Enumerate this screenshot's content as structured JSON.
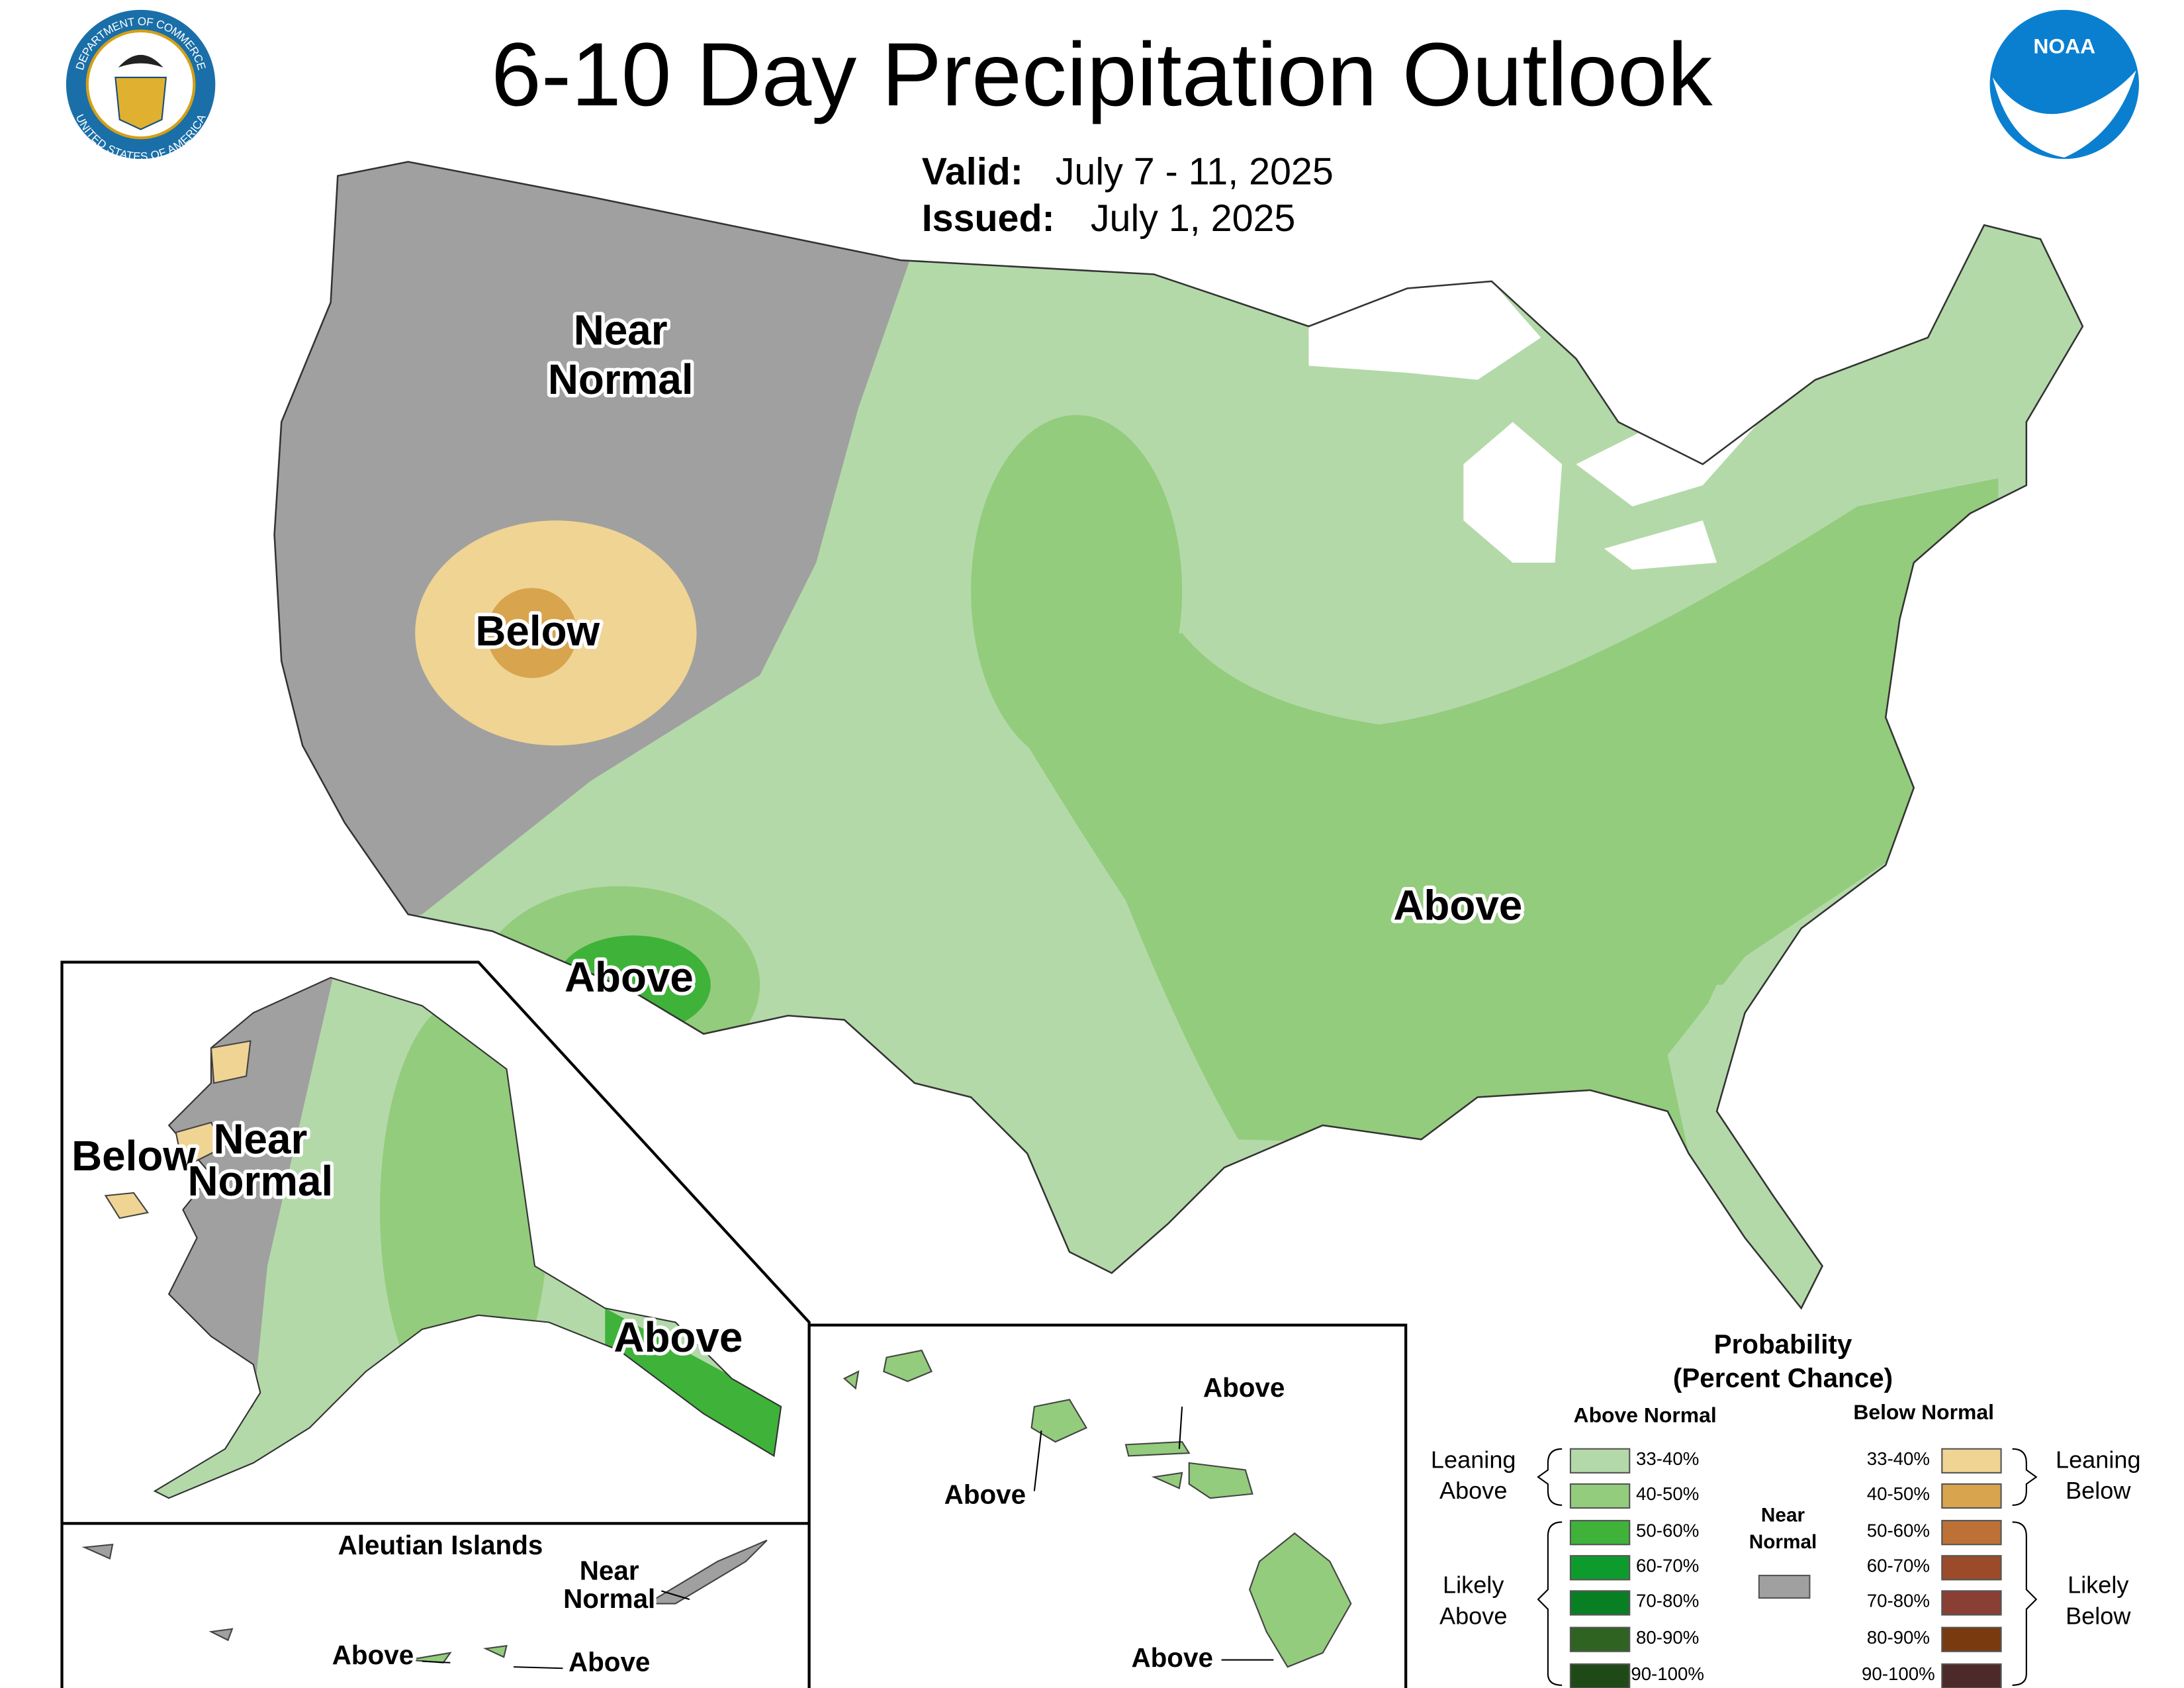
{
  "header": {
    "title": "6-10 Day Precipitation Outlook",
    "valid_label": "Valid:",
    "valid_dates": "July 7 - 11, 2025",
    "issued_label": "Issued:",
    "issued_date": "July 1, 2025"
  },
  "logos": {
    "commerce_top": "DEPARTMENT OF COMMERCE",
    "commerce_bottom": "UNITED STATES OF AMERICA",
    "noaa": "NOAA"
  },
  "conus_labels": [
    {
      "lines": [
        "Near",
        "Normal"
      ]
    },
    {
      "lines": [
        "Below"
      ]
    },
    {
      "lines": [
        "Above"
      ]
    },
    {
      "lines": [
        "Above"
      ]
    }
  ],
  "alaska_labels": [
    {
      "lines": [
        "Below"
      ]
    },
    {
      "lines": [
        "Near",
        "Normal"
      ]
    },
    {
      "lines": [
        "Above"
      ]
    }
  ],
  "aleutian": {
    "title": "Aleutian Islands",
    "labels": [
      {
        "lines": [
          "Near",
          "Normal"
        ]
      },
      {
        "lines": [
          "Above"
        ]
      },
      {
        "lines": [
          "Above"
        ]
      }
    ]
  },
  "hawaii_labels": [
    {
      "lines": [
        "Above"
      ]
    },
    {
      "lines": [
        "Above"
      ]
    },
    {
      "lines": [
        "Above"
      ]
    }
  ],
  "legend": {
    "title": [
      "Probability",
      "(Percent Chance)"
    ],
    "above_heading": "Above Normal",
    "below_heading": "Below Normal",
    "above": [
      {
        "range": "33-40%",
        "color": "#b3d9a9"
      },
      {
        "range": "40-50%",
        "color": "#93cc7c"
      },
      {
        "range": "50-60%",
        "color": "#3fb23a"
      },
      {
        "range": "60-70%",
        "color": "#0e9b2e"
      },
      {
        "range": "70-80%",
        "color": "#087f23"
      },
      {
        "range": "80-90%",
        "color": "#2f6321"
      },
      {
        "range": "90-100%",
        "color": "#1f4a17"
      }
    ],
    "below": [
      {
        "range": "33-40%",
        "color": "#f0d493"
      },
      {
        "range": "40-50%",
        "color": "#d8a44d"
      },
      {
        "range": "50-60%",
        "color": "#bd7136"
      },
      {
        "range": "60-70%",
        "color": "#9c4b2a"
      },
      {
        "range": "70-80%",
        "color": "#8a3f34"
      },
      {
        "range": "80-90%",
        "color": "#7a3a10"
      },
      {
        "range": "90-100%",
        "color": "#4d2a2a"
      }
    ],
    "near": {
      "lines": [
        "Near",
        "Normal"
      ],
      "color": "#a0a0a0"
    },
    "leaning_above": [
      "Leaning",
      "Above"
    ],
    "likely_above": [
      "Likely",
      "Above"
    ],
    "leaning_below": [
      "Leaning",
      "Below"
    ],
    "likely_below": [
      "Likely",
      "Below"
    ]
  }
}
